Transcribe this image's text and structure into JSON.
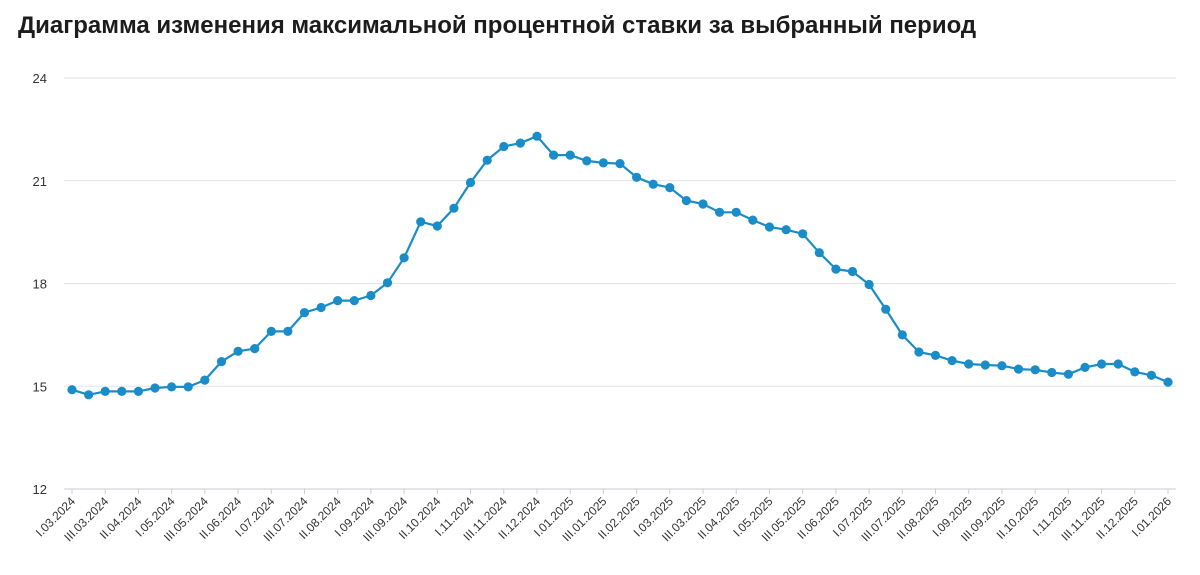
{
  "title": "Диаграмма изменения максимальной процентной ставки за выбранный период",
  "colors": {
    "series": "#1a8dc9",
    "grid": "#dfe3ea",
    "text": "#333333"
  },
  "chart_data": {
    "type": "line",
    "title": "Диаграмма изменения максимальной процентной ставки за выбранный период",
    "xlabel": "",
    "ylabel": "",
    "ylim": [
      12,
      24
    ],
    "y_ticks": [
      12,
      15,
      18,
      21,
      24
    ],
    "grid": true,
    "legend": "none",
    "x_tick_labels": [
      "I.03.2024",
      "III.03.2024",
      "II.04.2024",
      "I.05.2024",
      "III.05.2024",
      "II.06.2024",
      "I.07.2024",
      "III.07.2024",
      "II.08.2024",
      "I.09.2024",
      "III.09.2024",
      "II.10.2024",
      "I.11.2024",
      "III.11.2024",
      "II.12.2024",
      "I.01.2025",
      "III.01.2025",
      "II.02.2025",
      "I.03.2025",
      "III.03.2025",
      "II.04.2025",
      "I.05.2025",
      "III.05.2025",
      "II.06.2025",
      "I.07.2025",
      "III.07.2025",
      "II.08.2025",
      "I.09.2025",
      "III.09.2025",
      "II.10.2025",
      "I.11.2025",
      "III.11.2025",
      "II.12.2025",
      "I.01.2026"
    ],
    "series": [
      {
        "values": [
          14.9,
          14.75,
          14.85,
          14.85,
          14.85,
          14.95,
          14.98,
          14.98,
          15.18,
          15.72,
          16.02,
          16.1,
          16.6,
          16.6,
          17.15,
          17.3,
          17.5,
          17.5,
          17.65,
          18.02,
          18.75,
          19.8,
          19.68,
          20.2,
          20.95,
          21.6,
          22.0,
          22.1,
          22.3,
          21.75,
          21.75,
          21.58,
          21.52,
          21.5,
          21.1,
          20.9,
          20.8,
          20.42,
          20.32,
          20.08,
          20.08,
          19.85,
          19.65,
          19.57,
          19.45,
          18.9,
          18.42,
          18.35,
          17.97,
          17.25,
          16.5,
          16.0,
          15.9,
          15.75,
          15.65,
          15.62,
          15.6,
          15.5,
          15.48,
          15.4,
          15.35,
          15.55,
          15.65,
          15.65,
          15.42,
          15.32,
          15.12
        ]
      }
    ]
  }
}
